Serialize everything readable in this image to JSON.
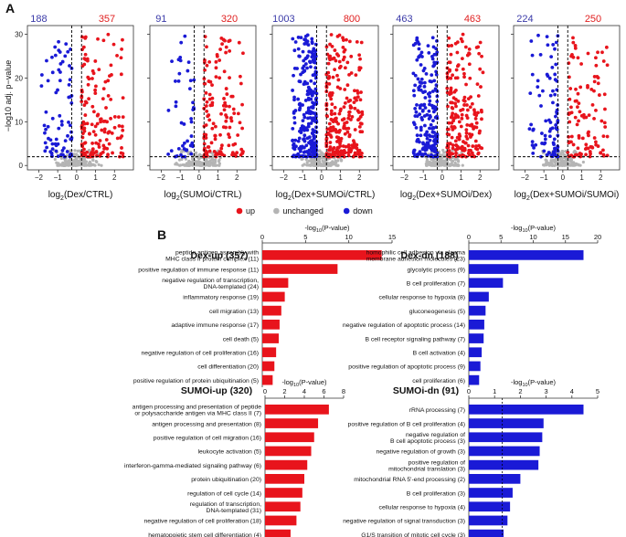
{
  "figure": {
    "panel_a_letter": "A",
    "panel_b_letter": "B",
    "volcano_ylabel": "−log10 adj. p−value",
    "legend": {
      "items": [
        {
          "label": "up",
          "color": "#e8141c"
        },
        {
          "label": "unchanged",
          "color": "#b4b4b4"
        },
        {
          "label": "down",
          "color": "#1a1ad6"
        }
      ]
    },
    "colors": {
      "up": "#e8141c",
      "down": "#1a1ad6",
      "unchanged": "#b4b4b4",
      "count_up": "#e02020",
      "count_down": "#3a3aa8"
    }
  },
  "chart_data": [
    {
      "type": "scatter",
      "title": "Dex/CTRL volcano",
      "xlabel": "log2(Dex/CTRL)",
      "xlabel_main": "log",
      "xlabel_sub": "2",
      "xlabel_rest": "(Dex/CTRL)",
      "ylabel": "−log10 adj. p−value",
      "down_count": "188",
      "up_count": "357",
      "xlim": [
        -2.6,
        3.0
      ],
      "ylim": [
        -1,
        32
      ],
      "xticks": [
        -2,
        -1,
        0,
        1,
        2
      ],
      "yticks": [
        0,
        10,
        20,
        30
      ],
      "fc_threshold": 0.26,
      "p_threshold": 2,
      "n_down_pts": 75,
      "n_up_pts": 150,
      "n_gray_pts": 170,
      "spread_x": 1.6,
      "max_y": 30
    },
    {
      "type": "scatter",
      "title": "SUMOi/CTRL volcano",
      "xlabel": "log2(SUMOi/CTRL)",
      "xlabel_main": "log",
      "xlabel_sub": "2",
      "xlabel_rest": "(SUMOi/CTRL)",
      "down_count": "91",
      "up_count": "320",
      "xlim": [
        -2.6,
        3.0
      ],
      "ylim": [
        -1,
        32
      ],
      "xticks": [
        -2,
        -1,
        0,
        1,
        2
      ],
      "yticks": [
        0,
        10,
        20,
        30
      ],
      "fc_threshold": 0.26,
      "p_threshold": 2,
      "n_down_pts": 45,
      "n_up_pts": 140,
      "n_gray_pts": 170,
      "spread_x": 1.5,
      "max_y": 30
    },
    {
      "type": "scatter",
      "title": "Dex+SUMOi/CTRL volcano",
      "xlabel": "log2(Dex+SUMOi/CTRL)",
      "xlabel_main": "log",
      "xlabel_sub": "2",
      "xlabel_rest": "(Dex+SUMOi/CTRL)",
      "down_count": "1003",
      "up_count": "800",
      "xlim": [
        -2.6,
        3.0
      ],
      "ylim": [
        -1,
        32
      ],
      "xticks": [
        -2,
        -1,
        0,
        1,
        2
      ],
      "yticks": [
        0,
        10,
        20,
        30
      ],
      "fc_threshold": 0.26,
      "p_threshold": 2,
      "n_down_pts": 260,
      "n_up_pts": 260,
      "n_gray_pts": 170,
      "spread_x": 1.3,
      "max_y": 30
    },
    {
      "type": "scatter",
      "title": "Dex+SUMOi/Dex volcano",
      "xlabel": "log2(Dex+SUMOi/Dex)",
      "xlabel_main": "log",
      "xlabel_sub": "2",
      "xlabel_rest": "(Dex+SUMOi/Dex)",
      "down_count": "463",
      "up_count": "463",
      "xlim": [
        -2.6,
        3.0
      ],
      "ylim": [
        -1,
        32
      ],
      "xticks": [
        -2,
        -1,
        0,
        1,
        2
      ],
      "yticks": [
        0,
        10,
        20,
        30
      ],
      "fc_threshold": 0.26,
      "p_threshold": 2,
      "n_down_pts": 200,
      "n_up_pts": 200,
      "n_gray_pts": 170,
      "spread_x": 1.3,
      "max_y": 30
    },
    {
      "type": "scatter",
      "title": "Dex+SUMOi/SUMOi volcano",
      "xlabel": "log2(Dex+SUMOi/SUMOi)",
      "xlabel_main": "log",
      "xlabel_sub": "2",
      "xlabel_rest": "(Dex+SUMOi/SUMOi)",
      "down_count": "224",
      "up_count": "250",
      "xlim": [
        -2.6,
        3.0
      ],
      "ylim": [
        -1,
        32
      ],
      "xticks": [
        -2,
        -1,
        0,
        1,
        2
      ],
      "yticks": [
        0,
        10,
        20,
        30
      ],
      "fc_threshold": 0.26,
      "p_threshold": 2,
      "n_down_pts": 90,
      "n_up_pts": 110,
      "n_gray_pts": 170,
      "spread_x": 1.5,
      "max_y": 30
    },
    {
      "type": "bar",
      "title": "Dex-up (357)",
      "axis_title": "-log10(P-value)",
      "orientation": "horizontal",
      "color": "#e8141c",
      "xlim": [
        0,
        15
      ],
      "xticks": [
        0,
        5,
        10,
        15
      ],
      "categories": [
        [
          "peptide antigen assembly with",
          "MHC class II protein complex (11)"
        ],
        [
          "positive regulation of immune response (11)"
        ],
        [
          "negative regulation of transcription,",
          "DNA-templated (24)"
        ],
        [
          "inflammatory response (19)"
        ],
        [
          "cell migration (13)"
        ],
        [
          "adaptive immune response (17)"
        ],
        [
          "cell death (5)"
        ],
        [
          "negative regulation of cell proliferation (16)"
        ],
        [
          "cell differentiation (20)"
        ],
        [
          "positive regulation of protein ubiquitination (5)"
        ]
      ],
      "values": [
        13.8,
        8.7,
        3.0,
        2.6,
        2.2,
        2.0,
        1.9,
        1.6,
        1.4,
        1.2
      ]
    },
    {
      "type": "bar",
      "title": "Dex-dn (188)",
      "axis_title": "-log10(P-value)",
      "orientation": "horizontal",
      "color": "#1a1ad6",
      "xlim": [
        0,
        20
      ],
      "xticks": [
        0,
        5,
        10,
        15,
        20
      ],
      "categories": [
        [
          "homophilic cell adhesion via plasma",
          "membrane adhesion molecules (23)"
        ],
        [
          "glycolytic process (9)"
        ],
        [
          "B cell proliferation (7)"
        ],
        [
          "cellular response to hypoxia (8)"
        ],
        [
          "gluconeogenesis (5)"
        ],
        [
          "negative regulation of apoptotic process (14)"
        ],
        [
          "B cell receptor signaling pathway (7)"
        ],
        [
          "B cell activation (4)"
        ],
        [
          "positive regulation of apoptotic process (9)"
        ],
        [
          "cell proliferation (6)"
        ]
      ],
      "values": [
        17.8,
        7.7,
        5.3,
        3.1,
        2.6,
        2.4,
        2.3,
        2.0,
        1.8,
        1.6
      ]
    },
    {
      "type": "bar",
      "title": "SUMOi-up (320)",
      "axis_title": "-log10(P-value)",
      "orientation": "horizontal",
      "color": "#e8141c",
      "xlim": [
        0,
        8
      ],
      "xticks": [
        0,
        2,
        4,
        6,
        8
      ],
      "categories": [
        [
          "antigen processing and presentation of peptide",
          "or polysaccharide antigen via MHC class II (7)"
        ],
        [
          "antigen processing and presentation (8)"
        ],
        [
          "positive regulation of cell migration (16)"
        ],
        [
          "leukocyte activation (5)"
        ],
        [
          "interferon-gamma-mediated signaling pathway (6)"
        ],
        [
          "protein ubiquitination (20)"
        ],
        [
          "regulation of cell cycle (14)"
        ],
        [
          "regulation of transcription,",
          "DNA-templated (31)"
        ],
        [
          "negative regulation of cell proliferation (18)"
        ],
        [
          "hematopoietic stem cell differentiation (4)"
        ]
      ],
      "values": [
        6.5,
        5.4,
        5.0,
        4.7,
        4.3,
        4.0,
        3.8,
        3.6,
        3.2,
        2.6
      ]
    },
    {
      "type": "bar",
      "title": "SUMOi-dn (91)",
      "axis_title": "-log10(P-value)",
      "orientation": "horizontal",
      "color": "#1a1ad6",
      "xlim": [
        0,
        5
      ],
      "xticks": [
        0,
        1,
        2,
        3,
        4,
        5
      ],
      "reference_line": 1.3,
      "categories": [
        [
          "rRNA processing (7)"
        ],
        [
          "positive regulation of B cell proliferation (4)"
        ],
        [
          "negative regulation of",
          "B cell apoptotic process (3)"
        ],
        [
          "negative regulation of growth (3)"
        ],
        [
          "positive regulation of",
          "mitochondrial translation (3)"
        ],
        [
          "mitochondrial RNA 5'-end processing (2)"
        ],
        [
          "B cell proliferation (3)"
        ],
        [
          "cellular response to hypoxia (4)"
        ],
        [
          "negative regulation of signal transduction (3)"
        ],
        [
          "G1/S transition of mitotic cell cycle (3)"
        ]
      ],
      "values": [
        4.45,
        2.9,
        2.85,
        2.75,
        2.7,
        2.0,
        1.7,
        1.6,
        1.5,
        1.35
      ]
    }
  ]
}
